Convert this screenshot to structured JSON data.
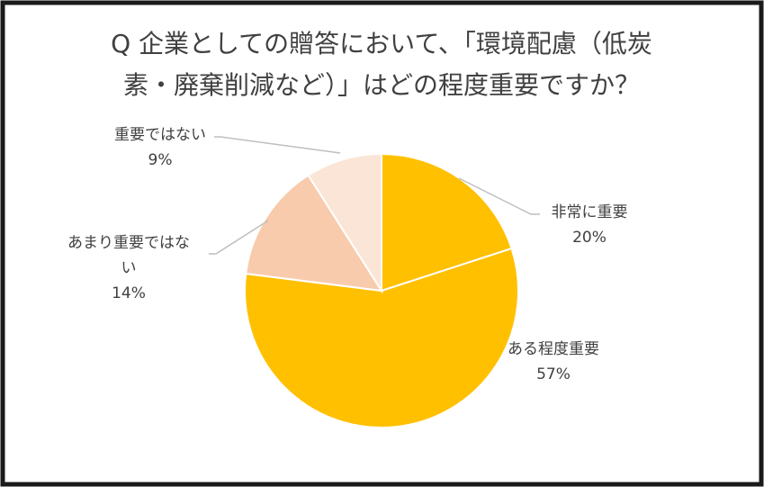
{
  "chart_data": {
    "type": "pie",
    "title": [
      "Q 企業としての贈答において、「環境配慮（低炭",
      "素・廃棄削減など）」はどの程度重要ですか？"
    ],
    "categories": [
      "非常に重要",
      "ある程度重要",
      "あまり重要ではない",
      "重要ではない"
    ],
    "values": [
      20,
      57,
      14,
      9
    ],
    "value_labels": [
      "20%",
      "57%",
      "14%",
      "9%"
    ],
    "colors": [
      "#ffc000",
      "#ffc000",
      "#f8cbad",
      "#fbe5d6"
    ]
  }
}
